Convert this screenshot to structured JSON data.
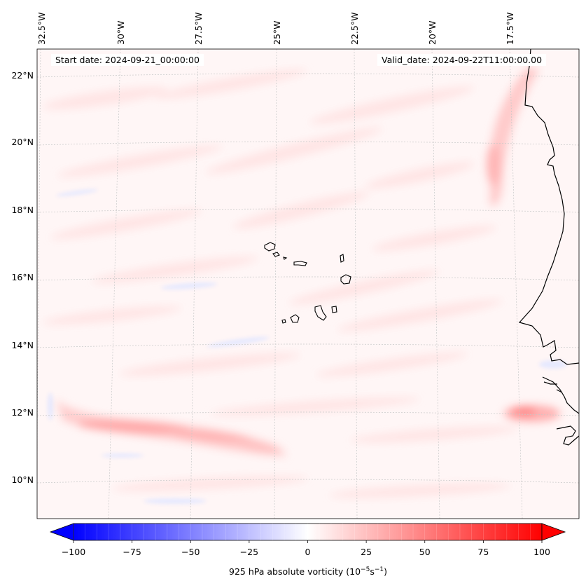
{
  "map": {
    "start_date_label": "Start date: 2024-09-21_00:00:00",
    "valid_date_label": "Valid_date: 2024-09-22T11:00:00.00",
    "longitude_labels": [
      "32.5°W",
      "30°W",
      "27.5°W",
      "25°W",
      "22.5°W",
      "20°W",
      "17.5°W"
    ],
    "latitude_labels": [
      "22°N",
      "20°N",
      "18°N",
      "16°N",
      "14°N",
      "12°N",
      "10°N"
    ],
    "field": "925 hPa absolute vorticity",
    "colors": {
      "strong_positive": "#ff2a2a",
      "weak_positive": "#ffe4e4",
      "background_field": "#fff5f5",
      "negative": "#d8dcff",
      "coastline": "#000000"
    }
  },
  "colorbar": {
    "min": -100,
    "max": 100,
    "ticks": [
      "−100",
      "−75",
      "−50",
      "−25",
      "0",
      "25",
      "50",
      "75",
      "100"
    ],
    "tick_values": [
      -100,
      -75,
      -50,
      -25,
      0,
      25,
      50,
      75,
      100
    ],
    "label": "925 hPa absolute vorticity (10",
    "label_exp1": "−5",
    "label_mid": "s",
    "label_exp2": "−1",
    "label_end": ")",
    "extend": "both",
    "cmap": "bwr"
  }
}
